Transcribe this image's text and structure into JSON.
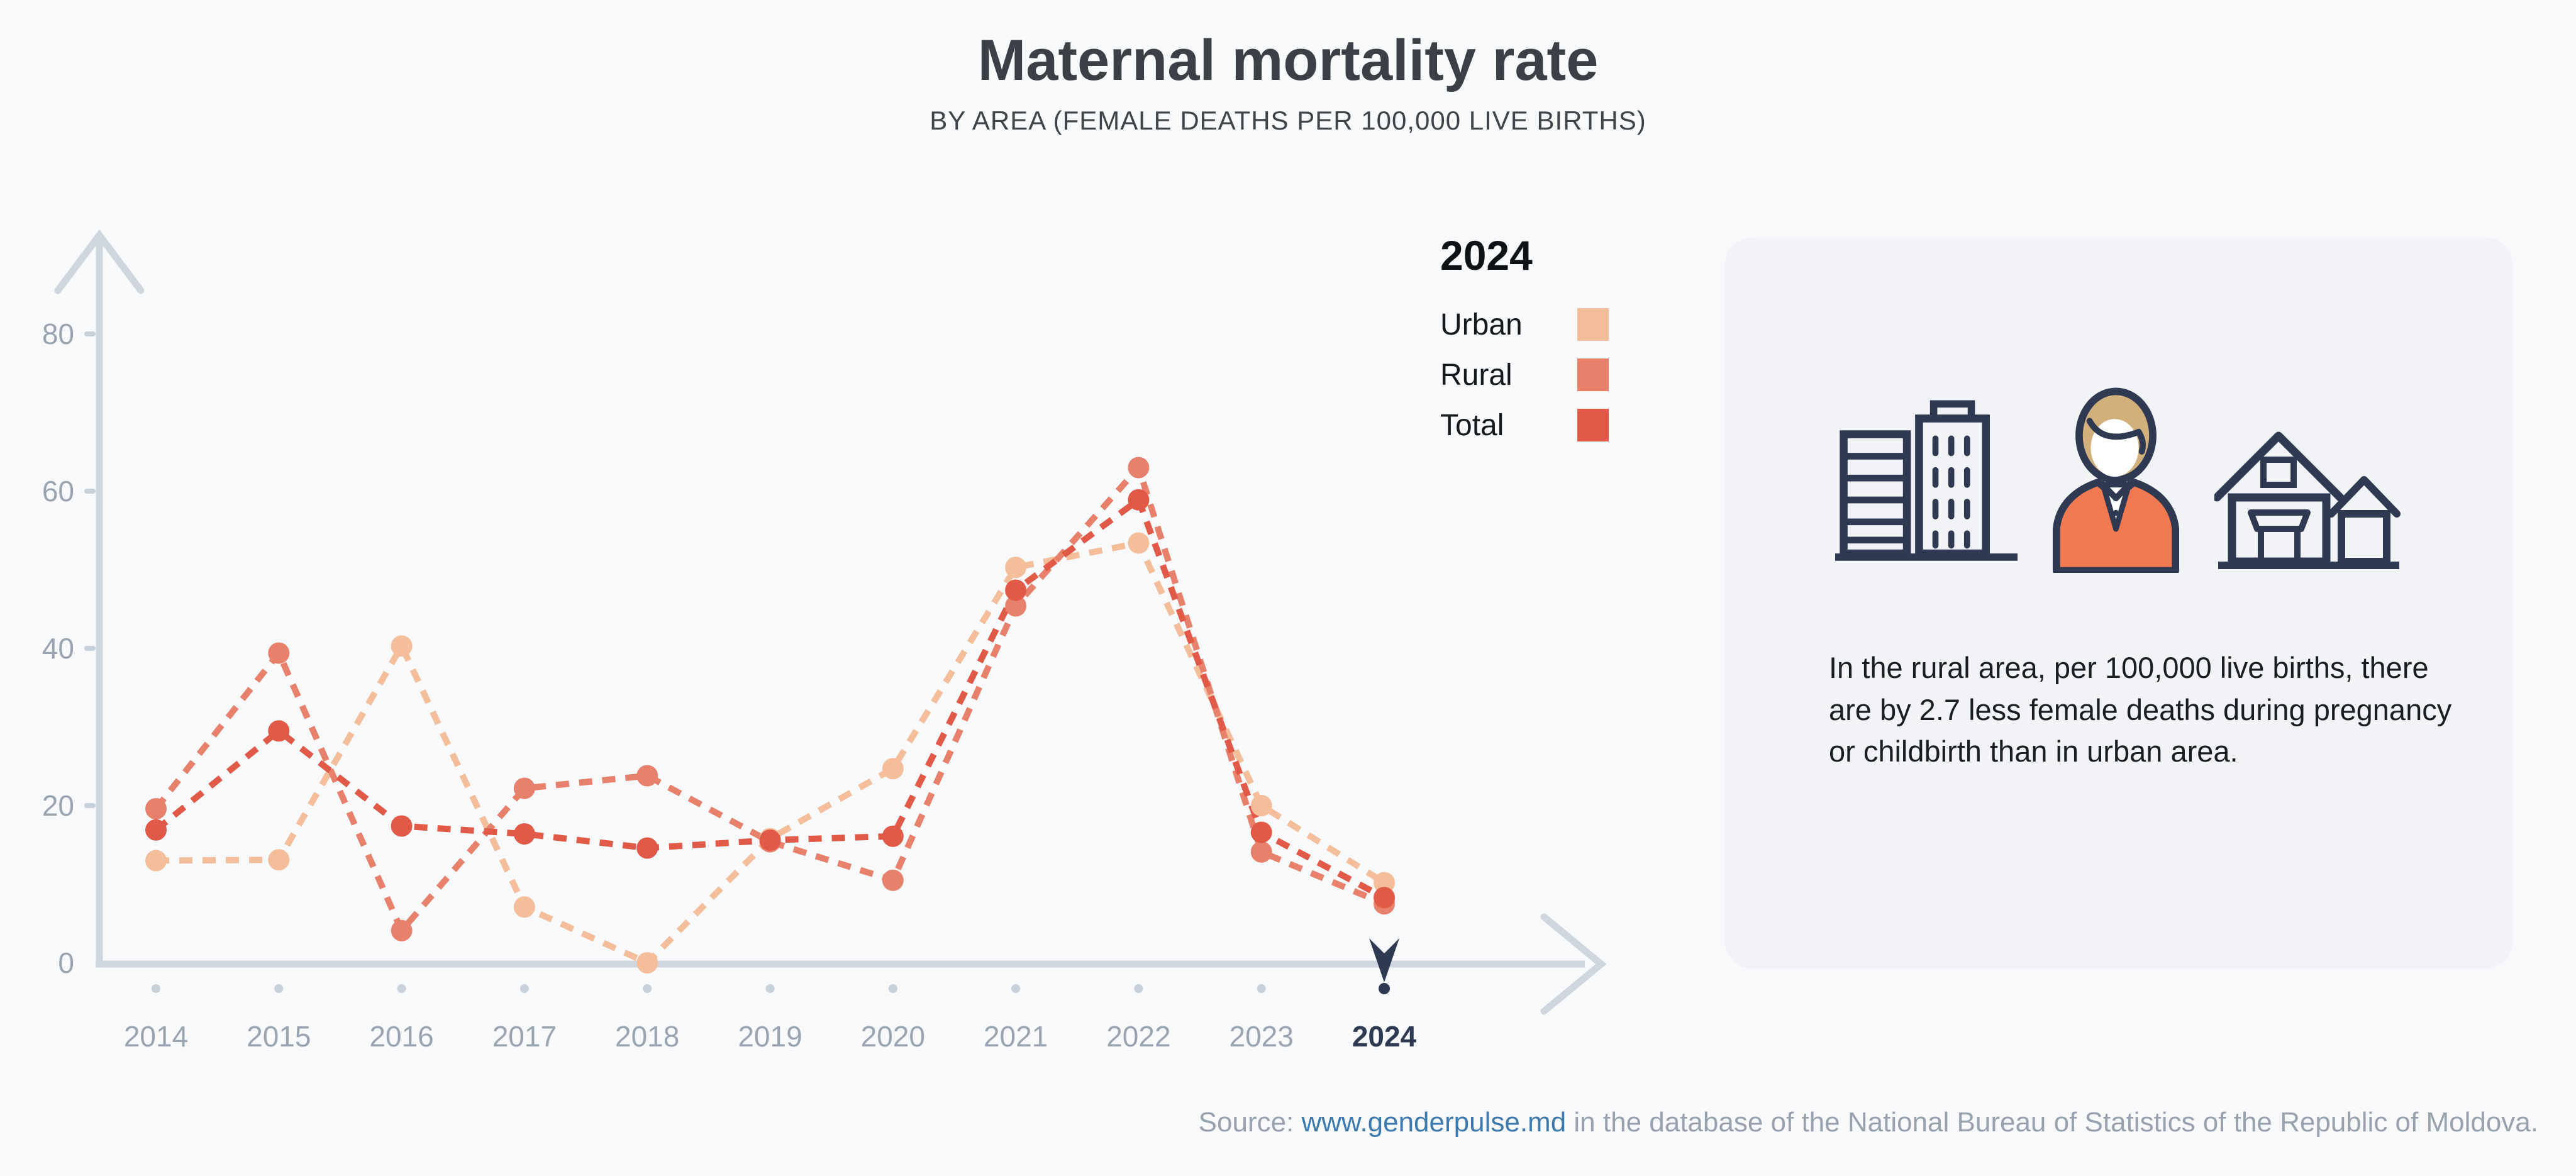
{
  "header": {
    "title": "Maternal mortality rate",
    "subtitle": "BY AREA (FEMALE DEATHS PER 100,000 LIVE BIRTHS)"
  },
  "chart_data": {
    "type": "line",
    "title": "Maternal mortality rate",
    "subtitle": "BY AREA (FEMALE DEATHS PER 100,000 LIVE BIRTHS)",
    "x": [
      2014,
      2015,
      2016,
      2017,
      2018,
      2019,
      2020,
      2021,
      2022,
      2023,
      2024
    ],
    "series": [
      {
        "name": "Urban",
        "color": "#F5BE9A",
        "values": [
          13.0,
          13.1,
          40.3,
          7.1,
          0.0,
          15.8,
          24.7,
          50.3,
          53.4,
          20.0,
          10.2
        ]
      },
      {
        "name": "Rural",
        "color": "#E8816B",
        "values": [
          19.6,
          39.4,
          4.1,
          22.2,
          23.8,
          15.4,
          10.5,
          45.4,
          63.0,
          14.1,
          7.5
        ]
      },
      {
        "name": "Total",
        "color": "#E15A48",
        "values": [
          16.9,
          29.5,
          17.4,
          16.4,
          14.6,
          15.6,
          16.1,
          47.4,
          58.9,
          16.6,
          8.3
        ]
      }
    ],
    "ylim": [
      0,
      90
    ],
    "yticks": [
      0,
      20,
      40,
      60,
      80
    ],
    "xlabel": "",
    "ylabel": "",
    "grid": false,
    "line_style": "dashed",
    "legend_position": "right",
    "selected_year": "2024"
  },
  "legend": {
    "title": "2024",
    "items": [
      {
        "label": "Urban"
      },
      {
        "label": "Rural"
      },
      {
        "label": "Total"
      }
    ]
  },
  "axis": {
    "line_color": "#CFD6DD",
    "tick_dot_color": "#C8D0DA",
    "tick_label_color": "#9AA4B0",
    "selected_color": "#2E3A52"
  },
  "info_card": {
    "background": "#F1F3F6",
    "icons": [
      "city-buildings-icon",
      "woman-icon",
      "rural-houses-icon"
    ],
    "text": "In the rural area, per 100,000 live births, there are by 2.7 less female deaths during pregnancy or childbirth than in urban area."
  },
  "source": {
    "prefix": "Source: ",
    "link": "www.genderpulse.md",
    "suffix": " in the database of the National Bureau of Statistics of the Republic of Moldova."
  },
  "palette": {
    "background": "#F8F9FB",
    "navy": "#2F3A52",
    "hair": "#D2B07C",
    "jacket": "#EF7950",
    "link_blue": "#3B79AE",
    "title_color": "#3A4046"
  }
}
